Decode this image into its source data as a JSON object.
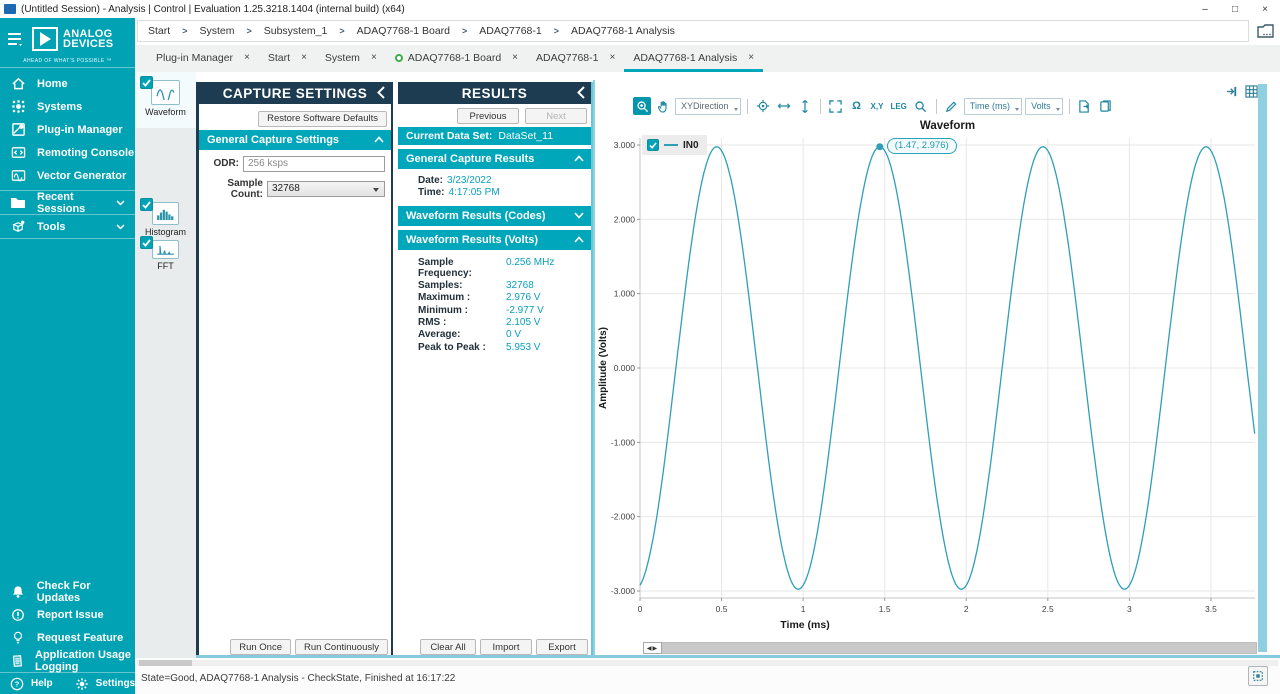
{
  "window": {
    "title": "(Untitled Session) - Analysis | Control | Evaluation 1.25.3218.1404 (internal build) (x64)",
    "controls": [
      "–",
      "□",
      "×"
    ]
  },
  "breadcrumb": {
    "separator": ">",
    "items": [
      "Start",
      "System",
      "Subsystem_1",
      "ADAQ7768-1 Board",
      "ADAQ7768-1",
      "ADAQ7768-1 Analysis"
    ]
  },
  "sidebar": {
    "brand": {
      "line1": "ANALOG",
      "line2": "DEVICES",
      "tagline": "AHEAD OF WHAT'S POSSIBLE ™"
    },
    "items": [
      {
        "label": "Home"
      },
      {
        "label": "Systems"
      },
      {
        "label": "Plug-in Manager"
      },
      {
        "label": "Remoting Console"
      },
      {
        "label": "Vector Generator"
      },
      {
        "label": "Recent Sessions",
        "expandable": true
      },
      {
        "label": "Tools",
        "expandable": true
      }
    ],
    "bottom_items": [
      {
        "label": "Check For Updates"
      },
      {
        "label": "Report Issue"
      },
      {
        "label": "Request Feature"
      },
      {
        "label": "Application Usage Logging"
      }
    ],
    "footer": {
      "help": "Help",
      "settings": "Settings"
    }
  },
  "tab_bar": {
    "close_glyph": "×",
    "tabs": [
      {
        "label": "Plug-in Manager"
      },
      {
        "label": "Start"
      },
      {
        "label": "System"
      },
      {
        "label": "ADAQ7768-1 Board",
        "status": "good"
      },
      {
        "label": "ADAQ7768-1"
      },
      {
        "label": "ADAQ7768-1 Analysis",
        "active": true
      }
    ]
  },
  "nav_strip": {
    "items": [
      {
        "label": "Waveform",
        "checked": true,
        "selected": true
      },
      {
        "label": "Histogram",
        "checked": true
      },
      {
        "label": "FFT",
        "checked": true
      }
    ]
  },
  "capture_settings": {
    "title": "CAPTURE SETTINGS",
    "restore_button": "Restore Software Defaults",
    "section": "General Capture Settings",
    "odr_label": "ODR:",
    "odr_value": "256 ksps",
    "sample_count_label": "Sample Count:",
    "sample_count_value": "32768",
    "run_once": "Run Once",
    "run_continuously": "Run Continuously"
  },
  "results": {
    "title": "RESULTS",
    "previous": "Previous",
    "next": "Next",
    "current_data_set_label": "Current Data Set:",
    "current_data_set_value": "DataSet_11",
    "general_section": "General Capture Results",
    "date_label": "Date:",
    "date_value": "3/23/2022",
    "time_label": "Time:",
    "time_value": "4:17:05 PM",
    "codes_section": "Waveform Results (Codes)",
    "volts_section": "Waveform Results (Volts)",
    "volts_rows": [
      {
        "label": "Sample Frequency:",
        "value": "0.256 MHz"
      },
      {
        "label": "Samples:",
        "value": "32768"
      },
      {
        "label": "Maximum :",
        "value": "2.976 V"
      },
      {
        "label": "Minimum :",
        "value": "-2.977 V"
      },
      {
        "label": "RMS :",
        "value": "2.105 V"
      },
      {
        "label": "Average:",
        "value": "0 V"
      },
      {
        "label": "Peak to Peak :",
        "value": "5.953 V"
      }
    ],
    "clear_all": "Clear All",
    "import": "Import",
    "export": "Export"
  },
  "chart": {
    "toolbar": {
      "xy_direction": "XYDirection",
      "xy_axes": "X,Y",
      "legend_toggle": "LEG",
      "undo_zoom": "Ω",
      "x_unit": "Time (ms)",
      "y_unit": "Volts"
    },
    "legend": {
      "name": "IN0",
      "checked": true
    },
    "tooltip": "(1.47, 2.976)"
  },
  "chart_data": {
    "type": "line",
    "title": "Waveform",
    "xlabel": "Time (ms)",
    "ylabel": "Amplitude (Volts)",
    "x_ticks": [
      "0",
      "0.5",
      "1",
      "1.5",
      "2",
      "2.5",
      "3",
      "3.5"
    ],
    "x_tick_values": [
      0,
      0.5,
      1,
      1.5,
      2,
      2.5,
      3,
      3.5
    ],
    "y_ticks": [
      "3.000",
      "2.000",
      "1.000",
      "0.000",
      "-1.000",
      "-2.000",
      "-3.000"
    ],
    "y_tick_values": [
      3,
      2,
      1,
      0,
      -1,
      -2,
      -3
    ],
    "xlim": [
      0,
      3.77
    ],
    "ylim": [
      -3.094,
      3.094
    ],
    "grid": true,
    "legend_position": "top-left",
    "series": [
      {
        "name": "IN0",
        "color": "#2f9fb8",
        "waveform": "sine",
        "amplitude": 2.976,
        "offset_v": 0,
        "period_ms": 1.0,
        "peak_at_ms": 1.47
      }
    ],
    "marker": {
      "x": 1.47,
      "y": 2.976,
      "label": "(1.47, 2.976)"
    }
  },
  "status_bar": {
    "text": "State=Good, ADAQ7768-1 Analysis - CheckState, Finished at 16:17:22"
  },
  "colors": {
    "accent_teal": "#00a2b3",
    "section_teal": "#00a6ba",
    "panel_header_navy": "#1d3c52",
    "value_teal": "#0a9fbe",
    "series_line": "#2f9fb8",
    "status_good_green": "#3fae49"
  }
}
